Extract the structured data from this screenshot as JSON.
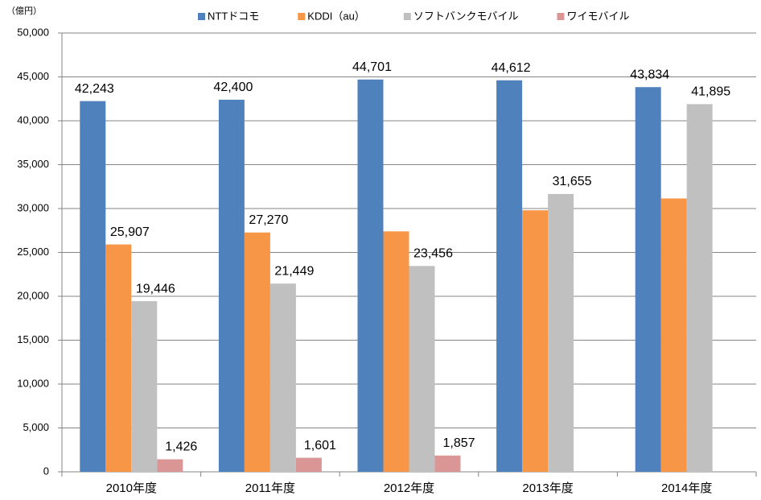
{
  "chart_data": {
    "type": "bar",
    "y_unit": "（億円）",
    "categories": [
      "2010年度",
      "2011年度",
      "2012年度",
      "2013年度",
      "2014年度"
    ],
    "series": [
      {
        "name": "NTTドコモ",
        "color": "#4f81bd",
        "values": [
          42243,
          42400,
          44701,
          44612,
          43834
        ],
        "value_labels": [
          "42,243",
          "42,400",
          "44,701",
          "44,612",
          "43,834"
        ]
      },
      {
        "name": "KDDI（au）",
        "color": "#f79646",
        "values": [
          25907,
          27270,
          27400,
          29800,
          31150
        ],
        "value_labels": [
          "25,907",
          "27,270",
          null,
          null,
          null
        ]
      },
      {
        "name": "ソフトバンクモバイル",
        "color": "#c0c0c0",
        "values": [
          19446,
          21449,
          23456,
          31655,
          41895
        ],
        "value_labels": [
          "19,446",
          "21,449",
          "23,456",
          "31,655",
          "41,895"
        ]
      },
      {
        "name": "ワイモバイル",
        "color": "#d99694",
        "values": [
          1426,
          1601,
          1857,
          null,
          null
        ],
        "value_labels": [
          "1,426",
          "1,601",
          "1,857",
          null,
          null
        ]
      }
    ],
    "ylim": [
      0,
      50000
    ],
    "yticks": [
      0,
      {
        "value": 5000,
        "label": "5,000"
      },
      {
        "value": 10000,
        "label": "10,000"
      },
      {
        "value": 15000,
        "label": "15,000"
      },
      {
        "value": 20000,
        "label": "20,000"
      },
      {
        "value": 25000,
        "label": "25,000"
      },
      {
        "value": 30000,
        "label": "30,000"
      },
      {
        "value": 35000,
        "label": "35,000"
      },
      {
        "value": 40000,
        "label": "40,000"
      },
      {
        "value": 45000,
        "label": "45,000"
      },
      {
        "value": 50000,
        "label": "50,000"
      }
    ],
    "grid": true,
    "legend": "top"
  }
}
